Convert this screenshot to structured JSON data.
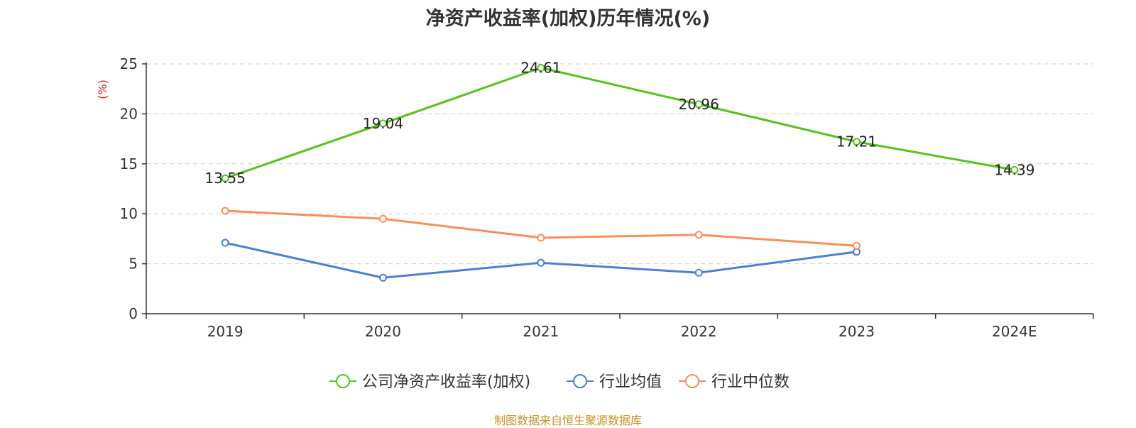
{
  "chart_data": {
    "type": "line",
    "title": "净资产收益率(加权)历年情况(%)",
    "ylabel": "(%)",
    "xlabel": "",
    "categories": [
      "2019",
      "2020",
      "2021",
      "2022",
      "2023",
      "2024E"
    ],
    "ylim": [
      0,
      25
    ],
    "yticks": [
      0,
      5,
      10,
      15,
      20,
      25
    ],
    "grid": true,
    "legend_position": "bottom",
    "series": [
      {
        "name": "公司净资产收益率(加权)",
        "color": "#52c41a",
        "values": [
          13.55,
          19.04,
          24.61,
          20.96,
          17.21,
          14.39
        ],
        "labels": [
          "13.55",
          "19.04",
          "24.61",
          "20.96",
          "17.21",
          "14.39"
        ]
      },
      {
        "name": "行业均值",
        "color": "#4a7fd8",
        "values": [
          7.1,
          3.6,
          5.1,
          4.1,
          6.2,
          null
        ]
      },
      {
        "name": "行业中位数",
        "color": "#f98e5a",
        "values": [
          10.3,
          9.5,
          7.6,
          7.9,
          6.8,
          null
        ]
      }
    ]
  },
  "source": "制图数据来自恒生聚源数据库",
  "colors": {
    "axis_label": "#e02020",
    "source": "#c8902a"
  }
}
